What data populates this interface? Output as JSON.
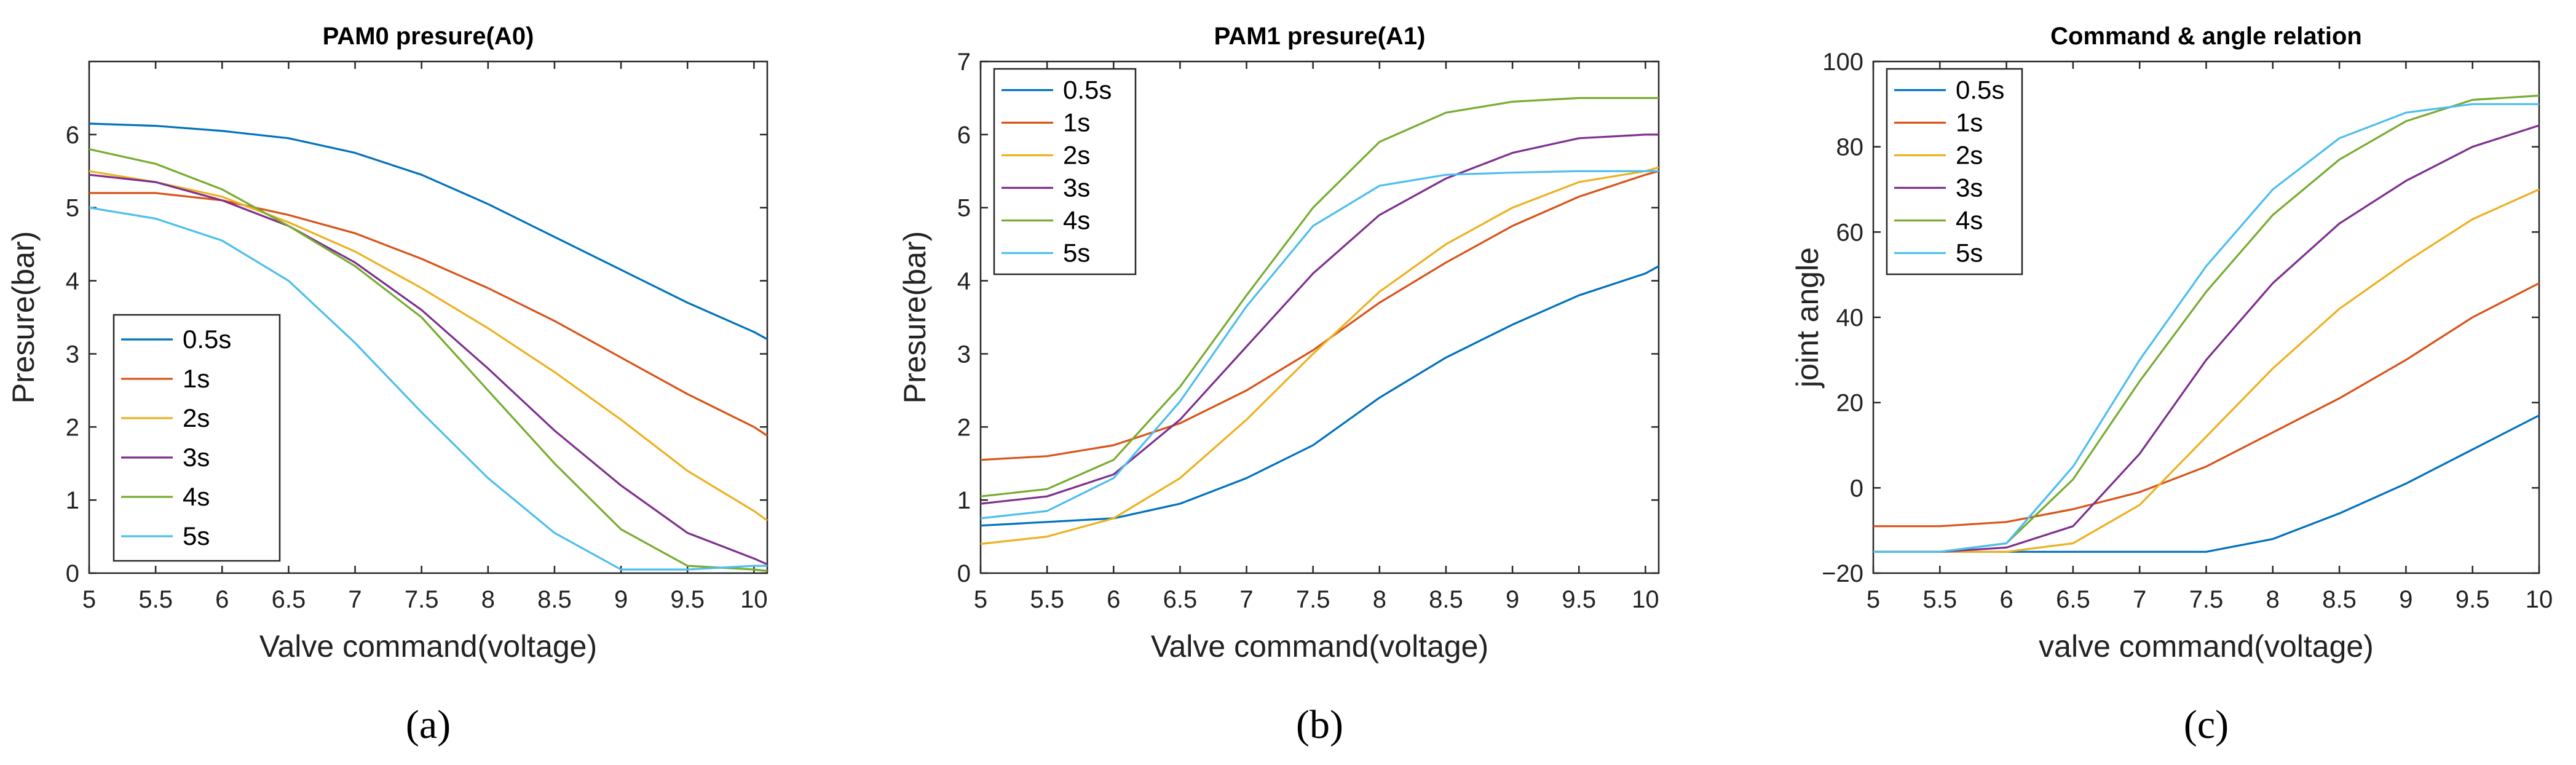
{
  "chart_data": [
    {
      "type": "line",
      "title": "PAM0 presure(A0)",
      "xlabel": "Valve command(voltage)",
      "ylabel": "Presure(bar)",
      "panel_label": "(a)",
      "xlim": [
        5,
        10.1
      ],
      "ylim": [
        0,
        7
      ],
      "xticks": [
        "5",
        "5.5",
        "6",
        "6.5",
        "7",
        "7.5",
        "8",
        "8.5",
        "9",
        "9.5",
        "10"
      ],
      "yticks": [
        "0",
        "1",
        "2",
        "3",
        "4",
        "5",
        "6"
      ],
      "legend_position": "bottom-left",
      "x": [
        5.0,
        5.5,
        6.0,
        6.5,
        7.0,
        7.5,
        8.0,
        8.5,
        9.0,
        9.5,
        10.0,
        10.1
      ],
      "series": [
        {
          "name": "0.5s",
          "color": "#0072BD",
          "values": [
            6.15,
            6.12,
            6.05,
            5.95,
            5.75,
            5.45,
            5.05,
            4.6,
            4.15,
            3.7,
            3.3,
            3.2
          ]
        },
        {
          "name": "1s",
          "color": "#D95319",
          "values": [
            5.2,
            5.2,
            5.1,
            4.9,
            4.65,
            4.3,
            3.9,
            3.45,
            2.95,
            2.45,
            2.0,
            1.88
          ]
        },
        {
          "name": "2s",
          "color": "#EDB120",
          "values": [
            5.5,
            5.35,
            5.15,
            4.8,
            4.4,
            3.9,
            3.35,
            2.75,
            2.1,
            1.4,
            0.85,
            0.72
          ]
        },
        {
          "name": "3s",
          "color": "#7E2F8E",
          "values": [
            5.45,
            5.35,
            5.1,
            4.75,
            4.25,
            3.6,
            2.8,
            1.95,
            1.2,
            0.55,
            0.2,
            0.12
          ]
        },
        {
          "name": "4s",
          "color": "#77AC30",
          "values": [
            5.8,
            5.6,
            5.25,
            4.75,
            4.2,
            3.5,
            2.5,
            1.5,
            0.6,
            0.1,
            0.05,
            0.03
          ]
        },
        {
          "name": "5s",
          "color": "#4DBEEE",
          "values": [
            5.0,
            4.85,
            4.55,
            4.0,
            3.15,
            2.2,
            1.3,
            0.55,
            0.05,
            0.05,
            0.1,
            0.1
          ]
        }
      ]
    },
    {
      "type": "line",
      "title": "PAM1 presure(A1)",
      "xlabel": "Valve command(voltage)",
      "ylabel": "Presure(bar)",
      "panel_label": "(b)",
      "xlim": [
        5,
        10.1
      ],
      "ylim": [
        0,
        7
      ],
      "xticks": [
        "5",
        "5.5",
        "6",
        "6.5",
        "7",
        "7.5",
        "8",
        "8.5",
        "9",
        "9.5",
        "10"
      ],
      "yticks": [
        "0",
        "1",
        "2",
        "3",
        "4",
        "5",
        "6",
        "7"
      ],
      "legend_position": "top-left",
      "x": [
        5.0,
        5.5,
        6.0,
        6.5,
        7.0,
        7.5,
        8.0,
        8.5,
        9.0,
        9.5,
        10.0,
        10.1
      ],
      "series": [
        {
          "name": "0.5s",
          "color": "#0072BD",
          "values": [
            0.65,
            0.7,
            0.75,
            0.95,
            1.3,
            1.75,
            2.4,
            2.95,
            3.4,
            3.8,
            4.1,
            4.2
          ]
        },
        {
          "name": "1s",
          "color": "#D95319",
          "values": [
            1.55,
            1.6,
            1.75,
            2.05,
            2.5,
            3.05,
            3.7,
            4.25,
            4.75,
            5.15,
            5.45,
            5.5
          ]
        },
        {
          "name": "2s",
          "color": "#EDB120",
          "values": [
            0.4,
            0.5,
            0.75,
            1.3,
            2.1,
            3.0,
            3.85,
            4.5,
            5.0,
            5.35,
            5.5,
            5.55
          ]
        },
        {
          "name": "3s",
          "color": "#7E2F8E",
          "values": [
            0.95,
            1.05,
            1.35,
            2.1,
            3.1,
            4.1,
            4.9,
            5.4,
            5.75,
            5.95,
            6.0,
            6.0
          ]
        },
        {
          "name": "4s",
          "color": "#77AC30",
          "values": [
            1.05,
            1.15,
            1.55,
            2.55,
            3.8,
            5.0,
            5.9,
            6.3,
            6.45,
            6.5,
            6.5,
            6.5
          ]
        },
        {
          "name": "5s",
          "color": "#4DBEEE",
          "values": [
            0.75,
            0.85,
            1.3,
            2.35,
            3.65,
            4.75,
            5.3,
            5.45,
            5.48,
            5.5,
            5.5,
            5.5
          ]
        }
      ]
    },
    {
      "type": "line",
      "title": "Command & angle relation",
      "xlabel": "valve command(voltage)",
      "ylabel": "joint angle",
      "panel_label": "(c)",
      "xlim": [
        5,
        10
      ],
      "ylim": [
        -20,
        100
      ],
      "xticks": [
        "5",
        "5.5",
        "6",
        "6.5",
        "7",
        "7.5",
        "8",
        "8.5",
        "9",
        "9.5",
        "10"
      ],
      "yticks": [
        "−20",
        "0",
        "20",
        "40",
        "60",
        "80",
        "100"
      ],
      "legend_position": "top-left",
      "x": [
        5.0,
        5.5,
        6.0,
        6.5,
        7.0,
        7.5,
        8.0,
        8.5,
        9.0,
        9.5,
        10.0
      ],
      "series": [
        {
          "name": "0.5s",
          "color": "#0072BD",
          "values": [
            -15,
            -15,
            -15,
            -15,
            -15,
            -15,
            -12,
            -6,
            1,
            9,
            17
          ]
        },
        {
          "name": "1s",
          "color": "#D95319",
          "values": [
            -9,
            -9,
            -8,
            -5,
            -1,
            5,
            13,
            21,
            30,
            40,
            48
          ]
        },
        {
          "name": "2s",
          "color": "#EDB120",
          "values": [
            -15,
            -15,
            -15,
            -13,
            -4,
            12,
            28,
            42,
            53,
            63,
            70
          ]
        },
        {
          "name": "3s",
          "color": "#7E2F8E",
          "values": [
            -15,
            -15,
            -14,
            -9,
            8,
            30,
            48,
            62,
            72,
            80,
            85
          ]
        },
        {
          "name": "4s",
          "color": "#77AC30",
          "values": [
            -15,
            -15,
            -13,
            2,
            25,
            46,
            64,
            77,
            86,
            91,
            92
          ]
        },
        {
          "name": "5s",
          "color": "#4DBEEE",
          "values": [
            -15,
            -15,
            -13,
            5,
            30,
            52,
            70,
            82,
            88,
            90,
            90
          ]
        }
      ]
    }
  ]
}
